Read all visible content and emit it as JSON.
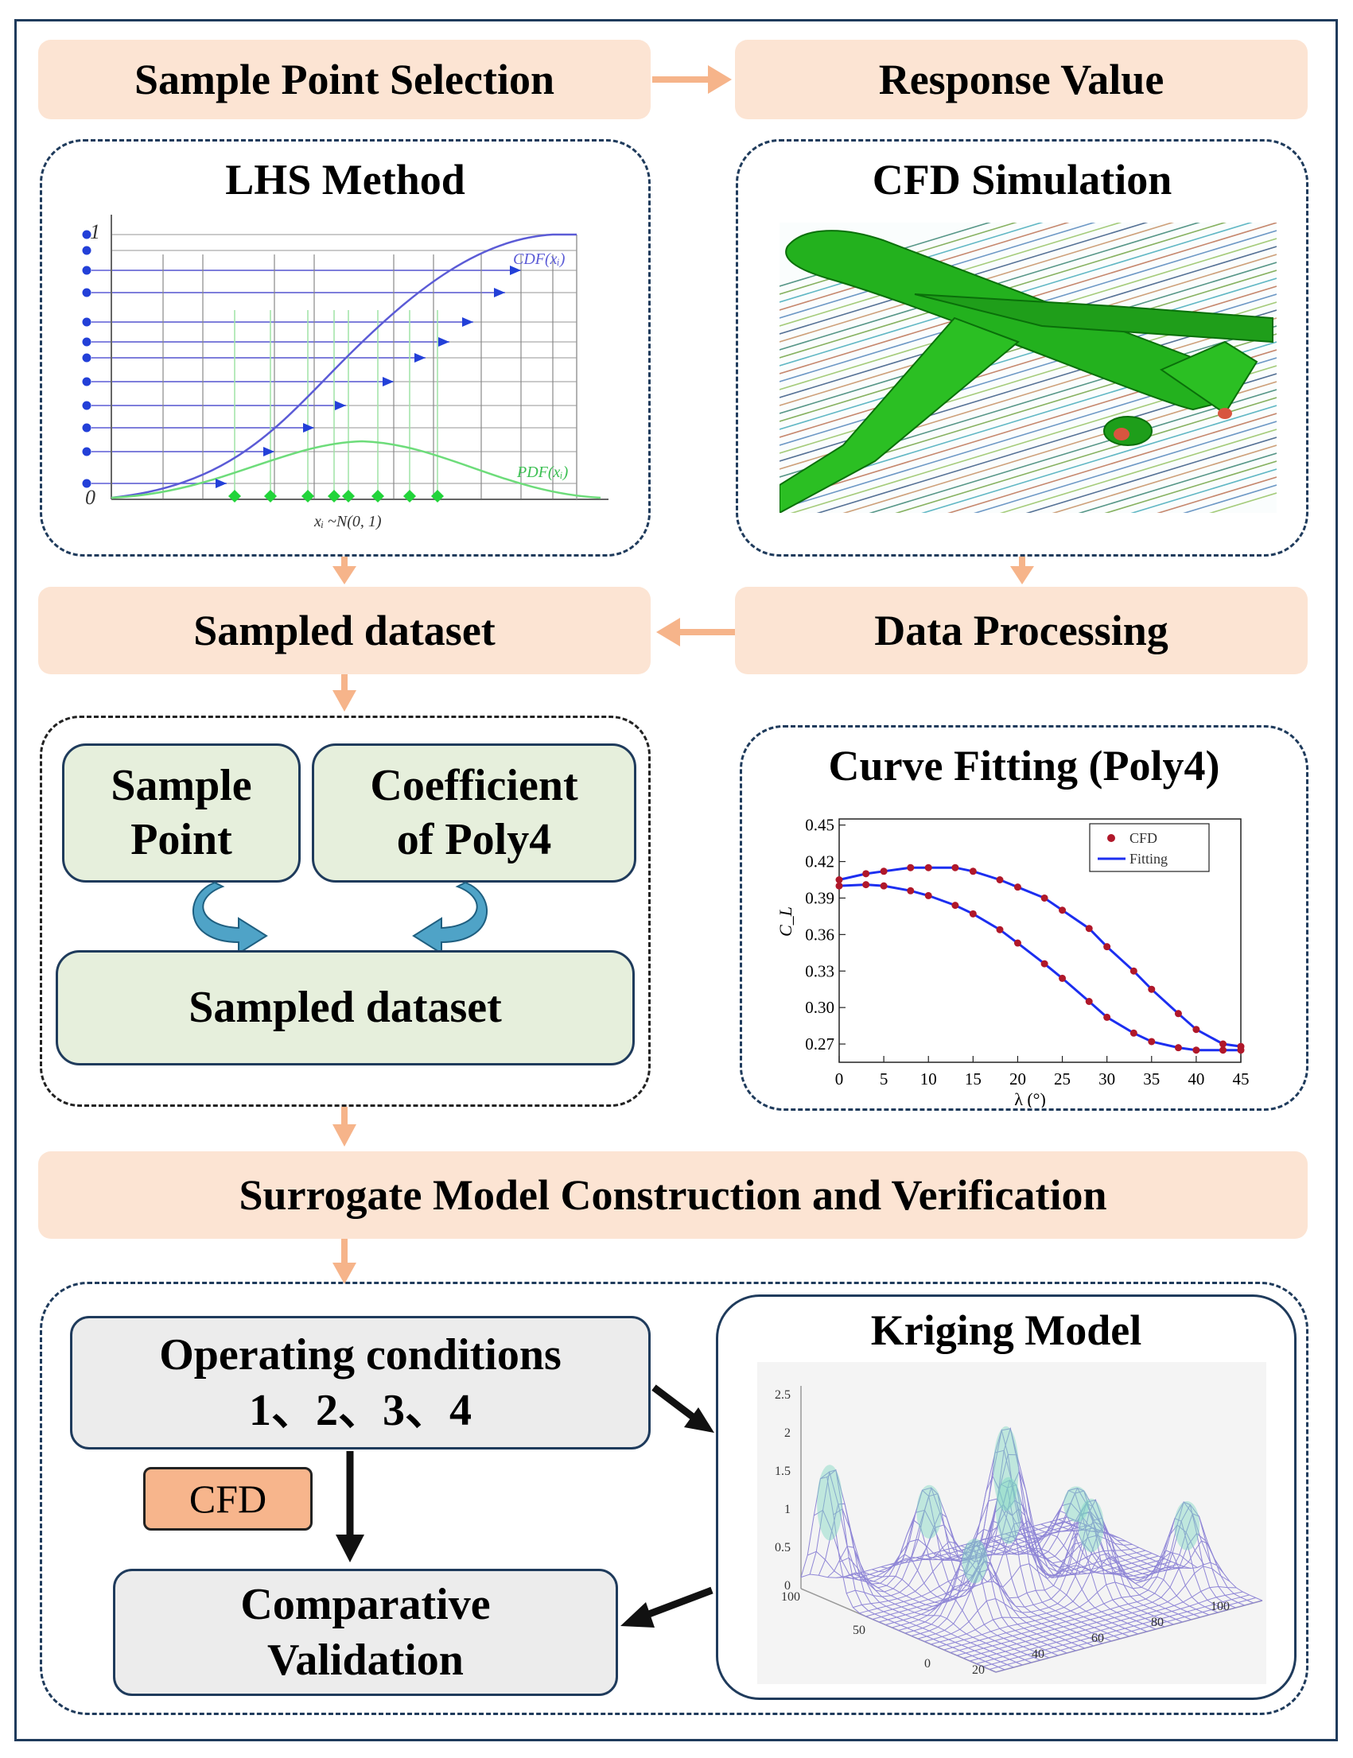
{
  "boxes": {
    "sample_point_selection": "Sample Point Selection",
    "response_value": "Response Value",
    "sampled_dataset_top": "Sampled dataset",
    "data_processing": "Data Processing",
    "surrogate": "Surrogate Model Construction and Verification"
  },
  "lhs": {
    "title": "LHS Method",
    "y_top": "1",
    "y_bottom": "0",
    "cdf_label": "CDF(xᵢ)",
    "pdf_label": "PDF(xᵢ)",
    "x_label": "xᵢ ~N(0, 1)"
  },
  "cfd_sim": {
    "title": "CFD Simulation"
  },
  "poly_box": {
    "sample_point_line1": "Sample",
    "sample_point_line2": "Point",
    "coef_line1": "Coefficient",
    "coef_line2": "of Poly4",
    "sampled_dataset": "Sampled dataset"
  },
  "curve_fit": {
    "title": "Curve Fitting (Poly4)"
  },
  "chart_data": {
    "type": "scatter",
    "xlabel": "λ (°)",
    "ylabel": "C_L",
    "x_ticks": [
      0,
      5,
      10,
      15,
      20,
      25,
      30,
      35,
      40,
      45
    ],
    "y_ticks": [
      0.27,
      0.3,
      0.33,
      0.36,
      0.39,
      0.42,
      0.45
    ],
    "xlim": [
      0,
      45
    ],
    "ylim": [
      0.255,
      0.455
    ],
    "legend_position": "top-right",
    "series": [
      {
        "name": "CFD",
        "x": [
          0,
          3,
          5,
          8,
          10,
          13,
          15,
          18,
          20,
          23,
          25,
          28,
          30,
          33,
          35,
          38,
          40,
          43,
          45
        ],
        "y": [
          0.405,
          0.41,
          0.412,
          0.415,
          0.415,
          0.415,
          0.412,
          0.405,
          0.399,
          0.39,
          0.38,
          0.365,
          0.35,
          0.33,
          0.315,
          0.295,
          0.282,
          0.27,
          0.268
        ]
      },
      {
        "name": "CFD",
        "x": [
          0,
          3,
          5,
          8,
          10,
          13,
          15,
          18,
          20,
          23,
          25,
          28,
          30,
          33,
          35,
          38,
          40,
          43,
          45
        ],
        "y": [
          0.4,
          0.401,
          0.4,
          0.396,
          0.392,
          0.384,
          0.377,
          0.364,
          0.353,
          0.336,
          0.324,
          0.305,
          0.292,
          0.279,
          0.272,
          0.267,
          0.265,
          0.265,
          0.265
        ]
      },
      {
        "name": "Fitting",
        "x": [
          0,
          45
        ],
        "y": [
          0.4,
          0.265
        ]
      }
    ]
  },
  "kriging": {
    "title": "Kriging Model",
    "z_ticks": [
      "2.5",
      "2",
      "1.5",
      "1",
      "0.5",
      "0"
    ],
    "y_ticks": [
      "100",
      "50",
      "0"
    ],
    "x_ticks": [
      "20",
      "40",
      "60",
      "80",
      "100"
    ]
  },
  "bottom": {
    "operating_line1": "Operating conditions",
    "operating_line2": "1、2、3、4",
    "cfd_tag": "CFD",
    "comparative_line1": "Comparative",
    "comparative_line2": "Validation"
  },
  "colors": {
    "pill": "#fce4d3",
    "arrow": "#f6b48a",
    "navy": "#1f3b5c",
    "green_box": "#e6efdc",
    "grey_box": "#ececec"
  }
}
